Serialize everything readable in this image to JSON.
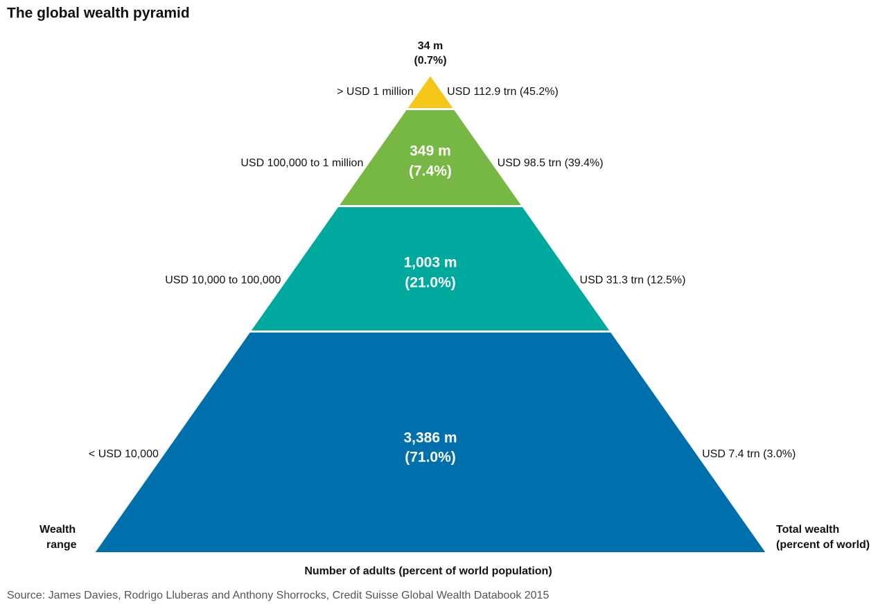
{
  "header": {
    "title": "The global wealth pyramid"
  },
  "tiers": [
    {
      "range": "> USD 1 million",
      "adults": "34 m",
      "share": "(0.7%)",
      "wealth": "USD 112.9 trn (45.2%)"
    },
    {
      "range": "USD 100,000 to 1 million",
      "adults": "349 m",
      "share": "(7.4%)",
      "wealth": "USD 98.5 trn (39.4%)"
    },
    {
      "range": "USD 10,000 to 100,000",
      "adults": "1,003 m",
      "share": "(21.0%)",
      "wealth": "USD 31.3 trn (12.5%)"
    },
    {
      "range": "< USD 10,000",
      "adults": "3,386 m",
      "share": "(71.0%)",
      "wealth": "USD 7.4 trn (3.0%)"
    }
  ],
  "left_label": [
    "Wealth",
    "range"
  ],
  "right_label": [
    "Total wealth",
    "(percent of world)"
  ],
  "bottom_label": "Number of adults (percent of world population)",
  "source": "Source: James Davies, Rodrigo Lluberas and Anthony Shorrocks, Credit Suisse Global Wealth Databook 2015"
}
